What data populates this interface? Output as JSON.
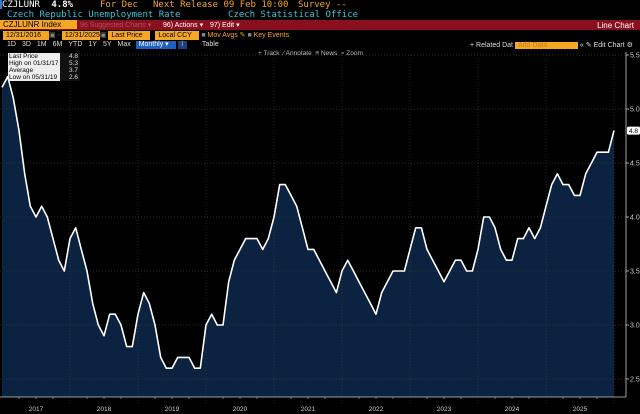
{
  "header": {
    "ticker": "CZJLUNR",
    "last": "4.8%",
    "period": "For Dec",
    "next_release": "Next Release 09 Feb 10:00",
    "survey": "Survey --",
    "name": "Czech Republic Unemployment Rate",
    "source": "Czech Statistical Office"
  },
  "toolbar": {
    "security": "CZJLUNR Index",
    "suggested": "96 Suggested Charts ▾",
    "actions": "96) Actions ▾",
    "edit": "97) Edit ▾",
    "chart_type": "Line Chart",
    "start_date": "12/31/2016",
    "end_date": "12/31/2025",
    "field": "Last Price",
    "currency": "Local CCY",
    "mov_avgs": "Mov Avgs",
    "key_events": "Key Events",
    "ranges": [
      "1D",
      "3D",
      "1M",
      "6M",
      "YTD",
      "1Y",
      "5Y",
      "Max"
    ],
    "frequency": "Monthly ▾",
    "table": "Table",
    "related": "+ Related Dat",
    "add_data": "Add Data",
    "collapse": "«",
    "edit_chart": "Edit Chart",
    "settings": "⚙",
    "track": "+ Track",
    "annotate": "Annotate",
    "news": "News",
    "zoom": "Zoom"
  },
  "legend": [
    {
      "label": "Last Price",
      "value": "4.8"
    },
    {
      "label": "High on 01/31/17",
      "value": "5.3"
    },
    {
      "label": "Average",
      "value": "3.7"
    },
    {
      "label": "Low on 05/31/19",
      "value": "2.6"
    }
  ],
  "chart_data": {
    "type": "area",
    "title": "Czech Republic Unemployment Rate",
    "start": "2016-12",
    "frequency": "monthly",
    "values": [
      5.2,
      5.3,
      5.1,
      4.8,
      4.4,
      4.1,
      4.0,
      4.1,
      4.0,
      3.8,
      3.6,
      3.5,
      3.8,
      3.9,
      3.7,
      3.5,
      3.2,
      3.0,
      2.9,
      3.1,
      3.1,
      3.0,
      2.8,
      2.8,
      3.1,
      3.3,
      3.2,
      3.0,
      2.7,
      2.6,
      2.6,
      2.7,
      2.7,
      2.7,
      2.6,
      2.6,
      3.0,
      3.1,
      3.0,
      3.0,
      3.4,
      3.6,
      3.7,
      3.8,
      3.8,
      3.8,
      3.7,
      3.8,
      4.0,
      4.3,
      4.3,
      4.2,
      4.1,
      3.9,
      3.7,
      3.7,
      3.6,
      3.5,
      3.4,
      3.3,
      3.5,
      3.6,
      3.5,
      3.4,
      3.3,
      3.2,
      3.1,
      3.3,
      3.4,
      3.5,
      3.5,
      3.5,
      3.7,
      3.9,
      3.9,
      3.7,
      3.6,
      3.5,
      3.4,
      3.5,
      3.6,
      3.6,
      3.5,
      3.5,
      3.7,
      4.0,
      4.0,
      3.9,
      3.7,
      3.6,
      3.6,
      3.8,
      3.8,
      3.9,
      3.8,
      3.9,
      4.1,
      4.3,
      4.4,
      4.3,
      4.3,
      4.2,
      4.2,
      4.4,
      4.5,
      4.6,
      4.6,
      4.6,
      4.8
    ],
    "x_tick_labels": [
      "2017",
      "2018",
      "2019",
      "2020",
      "2021",
      "2022",
      "2023",
      "2024",
      "2025"
    ],
    "y_ticks": [
      "5.5",
      "5.0",
      "4.5",
      "4.0",
      "3.5",
      "3.0",
      "2.5"
    ],
    "ylim": [
      2.3,
      5.6
    ],
    "last_value_label": "4.8",
    "grid": true,
    "colors": {
      "line": "#ffffff",
      "fill": "#0b2240",
      "grid": "#3a3a3a"
    }
  }
}
